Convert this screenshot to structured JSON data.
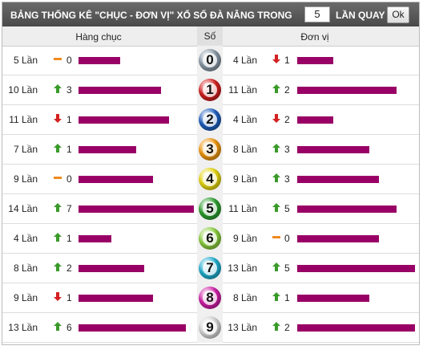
{
  "header": {
    "title": "BẢNG THỐNG KÊ \"CHỤC - ĐƠN VỊ\" XỔ SỐ ĐÀ NẴNG TRONG",
    "spins": "5",
    "suffix": "LẦN QUAY",
    "button": "Ok"
  },
  "columns": {
    "tens": "Hàng chục",
    "digit": "Số",
    "units": "Đơn vị"
  },
  "rows": [
    {
      "digit": "0",
      "color": "#8a9aa8",
      "tens": {
        "label": "5 Lần",
        "count": 5,
        "trend": "same",
        "change": "0"
      },
      "units": {
        "label": "4 Lần",
        "count": 4,
        "trend": "down",
        "change": "1"
      }
    },
    {
      "digit": "1",
      "color": "#d42020",
      "tens": {
        "label": "10 Lần",
        "count": 10,
        "trend": "up",
        "change": "3"
      },
      "units": {
        "label": "11 Lần",
        "count": 11,
        "trend": "up",
        "change": "2"
      }
    },
    {
      "digit": "2",
      "color": "#1f5fc0",
      "tens": {
        "label": "11 Lần",
        "count": 11,
        "trend": "down",
        "change": "1"
      },
      "units": {
        "label": "4 Lần",
        "count": 4,
        "trend": "down",
        "change": "2"
      }
    },
    {
      "digit": "3",
      "color": "#f29a12",
      "tens": {
        "label": "7 Lần",
        "count": 7,
        "trend": "up",
        "change": "1"
      },
      "units": {
        "label": "8 Lần",
        "count": 8,
        "trend": "up",
        "change": "3"
      }
    },
    {
      "digit": "4",
      "color": "#e8d810",
      "tens": {
        "label": "9 Lần",
        "count": 9,
        "trend": "same",
        "change": "0"
      },
      "units": {
        "label": "9 Lần",
        "count": 9,
        "trend": "up",
        "change": "3"
      }
    },
    {
      "digit": "5",
      "color": "#2ea030",
      "tens": {
        "label": "14 Lần",
        "count": 14,
        "trend": "up",
        "change": "7"
      },
      "units": {
        "label": "11 Lần",
        "count": 11,
        "trend": "up",
        "change": "5"
      }
    },
    {
      "digit": "6",
      "color": "#8cd040",
      "tens": {
        "label": "4 Lần",
        "count": 4,
        "trend": "up",
        "change": "1"
      },
      "units": {
        "label": "9 Lần",
        "count": 9,
        "trend": "same",
        "change": "0"
      }
    },
    {
      "digit": "7",
      "color": "#22b0d0",
      "tens": {
        "label": "8 Lần",
        "count": 8,
        "trend": "up",
        "change": "2"
      },
      "units": {
        "label": "13 Lần",
        "count": 13,
        "trend": "up",
        "change": "5"
      }
    },
    {
      "digit": "8",
      "color": "#d020a8",
      "tens": {
        "label": "9 Lần",
        "count": 9,
        "trend": "down",
        "change": "1"
      },
      "units": {
        "label": "8 Lần",
        "count": 8,
        "trend": "up",
        "change": "1"
      }
    },
    {
      "digit": "9",
      "color": "#d8d8d8",
      "tens": {
        "label": "13 Lần",
        "count": 13,
        "trend": "up",
        "change": "6"
      },
      "units": {
        "label": "13 Lần",
        "count": 13,
        "trend": "up",
        "change": "2"
      }
    }
  ]
}
